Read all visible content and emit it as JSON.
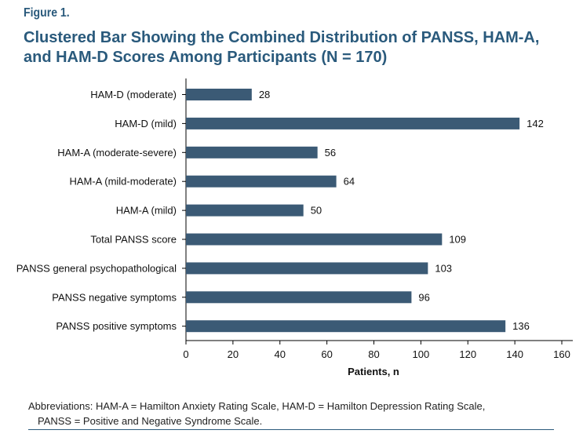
{
  "figure_label": "Figure 1.",
  "chart_data": {
    "type": "bar",
    "orientation": "horizontal",
    "title": "Clustered Bar Showing the Combined Distribution of PANSS, HAM-A, and HAM-D Scores Among Participants (N = 170)",
    "xlabel": "Patients, n",
    "ylabel": "",
    "xlim": [
      0,
      160
    ],
    "xticks": [
      0,
      20,
      40,
      60,
      80,
      100,
      120,
      140,
      160
    ],
    "categories": [
      "HAM-D (moderate)",
      "HAM-D (mild)",
      "HAM-A (moderate-severe)",
      "HAM-A (mild-moderate)",
      "HAM-A (mild)",
      "Total PANSS score",
      "PANSS general psychopathological",
      "PANSS negative symptoms",
      "PANSS positive symptoms"
    ],
    "values": [
      28,
      142,
      56,
      64,
      50,
      109,
      103,
      96,
      136
    ],
    "bar_color": "#3b5a75",
    "grid": false,
    "data_labels": true
  },
  "footnote": {
    "line1": "Abbreviations: HAM-A = Hamilton Anxiety Rating Scale, HAM-D = Hamilton Depression Rating Scale,",
    "line2": "PANSS = Positive and Negative Syndrome Scale."
  }
}
